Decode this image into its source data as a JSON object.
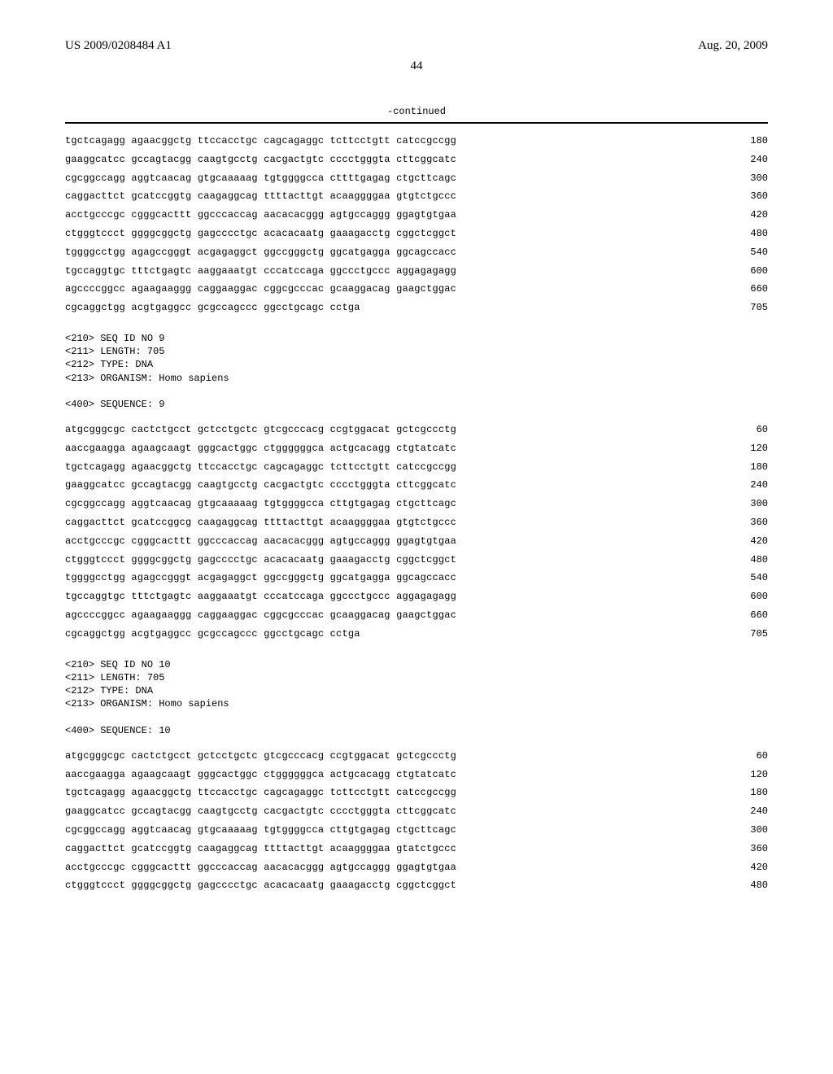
{
  "header": {
    "pub_number": "US 2009/0208484 A1",
    "pub_date": "Aug. 20, 2009"
  },
  "page_number": "44",
  "continued_label": "-continued",
  "seq_continued": {
    "lines": [
      {
        "t": "tgctcagagg agaacggctg ttccacctgc cagcagaggc tcttcctgtt catccgccgg",
        "p": "180"
      },
      {
        "t": "gaaggcatcc gccagtacgg caagtgcctg cacgactgtc cccctgggta cttcggcatc",
        "p": "240"
      },
      {
        "t": "cgcggccagg aggtcaacag gtgcaaaaag tgtggggcca cttttgagag ctgcttcagc",
        "p": "300"
      },
      {
        "t": "caggacttct gcatccggtg caagaggcag ttttacttgt acaaggggaa gtgtctgccc",
        "p": "360"
      },
      {
        "t": "acctgcccgc cgggcacttt ggcccaccag aacacacggg agtgccaggg ggagtgtgaa",
        "p": "420"
      },
      {
        "t": "ctgggtccct ggggcggctg gagcccctgc acacacaatg gaaagacctg cggctcggct",
        "p": "480"
      },
      {
        "t": "tggggcctgg agagccgggt acgagaggct ggccgggctg ggcatgagga ggcagccacc",
        "p": "540"
      },
      {
        "t": "tgccaggtgc tttctgagtc aaggaaatgt cccatccaga ggccctgccc aggagagagg",
        "p": "600"
      },
      {
        "t": "agccccggcc agaagaaggg caggaaggac cggcgcccac gcaaggacag gaagctggac",
        "p": "660"
      },
      {
        "t": "cgcaggctgg acgtgaggcc gcgccagccc ggcctgcagc cctga",
        "p": "705"
      }
    ]
  },
  "seq9_meta": [
    "<210> SEQ ID NO 9",
    "<211> LENGTH: 705",
    "<212> TYPE: DNA",
    "<213> ORGANISM: Homo sapiens",
    "",
    "<400> SEQUENCE: 9"
  ],
  "seq9": {
    "lines": [
      {
        "t": "atgcgggcgc cactctgcct gctcctgctc gtcgcccacg ccgtggacat gctcgccctg",
        "p": "60"
      },
      {
        "t": "aaccgaagga agaagcaagt gggcactggc ctggggggca actgcacagg ctgtatcatc",
        "p": "120"
      },
      {
        "t": "tgctcagagg agaacggctg ttccacctgc cagcagaggc tcttcctgtt catccgccgg",
        "p": "180"
      },
      {
        "t": "gaaggcatcc gccagtacgg caagtgcctg cacgactgtc cccctgggta cttcggcatc",
        "p": "240"
      },
      {
        "t": "cgcggccagg aggtcaacag gtgcaaaaag tgtggggcca cttgtgagag ctgcttcagc",
        "p": "300"
      },
      {
        "t": "caggacttct gcatccggcg caagaggcag ttttacttgt acaaggggaa gtgtctgccc",
        "p": "360"
      },
      {
        "t": "acctgcccgc cgggcacttt ggcccaccag aacacacggg agtgccaggg ggagtgtgaa",
        "p": "420"
      },
      {
        "t": "ctgggtccct ggggcggctg gagcccctgc acacacaatg gaaagacctg cggctcggct",
        "p": "480"
      },
      {
        "t": "tggggcctgg agagccgggt acgagaggct ggccgggctg ggcatgagga ggcagccacc",
        "p": "540"
      },
      {
        "t": "tgccaggtgc tttctgagtc aaggaaatgt cccatccaga ggccctgccc aggagagagg",
        "p": "600"
      },
      {
        "t": "agccccggcc agaagaaggg caggaaggac cggcgcccac gcaaggacag gaagctggac",
        "p": "660"
      },
      {
        "t": "cgcaggctgg acgtgaggcc gcgccagccc ggcctgcagc cctga",
        "p": "705"
      }
    ]
  },
  "seq10_meta": [
    "<210> SEQ ID NO 10",
    "<211> LENGTH: 705",
    "<212> TYPE: DNA",
    "<213> ORGANISM: Homo sapiens",
    "",
    "<400> SEQUENCE: 10"
  ],
  "seq10": {
    "lines": [
      {
        "t": "atgcgggcgc cactctgcct gctcctgctc gtcgcccacg ccgtggacat gctcgccctg",
        "p": "60"
      },
      {
        "t": "aaccgaagga agaagcaagt gggcactggc ctggggggca actgcacagg ctgtatcatc",
        "p": "120"
      },
      {
        "t": "tgctcagagg agaacggctg ttccacctgc cagcagaggc tcttcctgtt catccgccgg",
        "p": "180"
      },
      {
        "t": "gaaggcatcc gccagtacgg caagtgcctg cacgactgtc cccctgggta cttcggcatc",
        "p": "240"
      },
      {
        "t": "cgcggccagg aggtcaacag gtgcaaaaag tgtggggcca cttgtgagag ctgcttcagc",
        "p": "300"
      },
      {
        "t": "caggacttct gcatccggtg caagaggcag ttttacttgt acaaggggaa gtatctgccc",
        "p": "360"
      },
      {
        "t": "acctgcccgc cgggcacttt ggcccaccag aacacacggg agtgccaggg ggagtgtgaa",
        "p": "420"
      },
      {
        "t": "ctgggtccct ggggcggctg gagcccctgc acacacaatg gaaagacctg cggctcggct",
        "p": "480"
      }
    ]
  }
}
